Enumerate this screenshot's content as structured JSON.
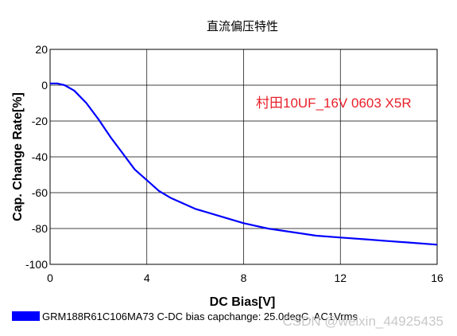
{
  "chart_data": {
    "type": "line",
    "title": "直流偏压特性",
    "xlabel": "DC Bias[V]",
    "ylabel": "Cap. Change Rate[%]",
    "xlim": [
      0,
      16
    ],
    "ylim": [
      -100,
      20
    ],
    "xticks": [
      0,
      4,
      8,
      12,
      16
    ],
    "yticks": [
      20,
      0,
      -20,
      -40,
      -60,
      -80,
      -100
    ],
    "grid": true,
    "annotation": "村田10UF_16V 0603 X5R",
    "legend_position": "bottom-left",
    "series": [
      {
        "name": "GRM188R61C106MA73 C-DC bias capchange: 25.0degC, AC1Vrms",
        "color": "#0000ff",
        "x": [
          0,
          0.3,
          0.6,
          1.0,
          1.5,
          2.0,
          2.5,
          3.0,
          3.5,
          4.0,
          4.5,
          5.0,
          5.5,
          6.0,
          7.0,
          8.0,
          9.0,
          10.0,
          11.0,
          12.0,
          13.0,
          14.0,
          15.0,
          16.0
        ],
        "y": [
          1,
          1,
          0,
          -3,
          -10,
          -19,
          -29,
          -38,
          -47,
          -53,
          -59,
          -63,
          -66,
          -69,
          -73,
          -77,
          -80,
          -82,
          -84,
          -85,
          -86,
          -87,
          -88,
          -89
        ]
      }
    ]
  },
  "watermark": "CSDN @weixin_44925435",
  "colors": {
    "series": "#0000ff",
    "annotation": "#e8202a",
    "grid": "#000000"
  }
}
